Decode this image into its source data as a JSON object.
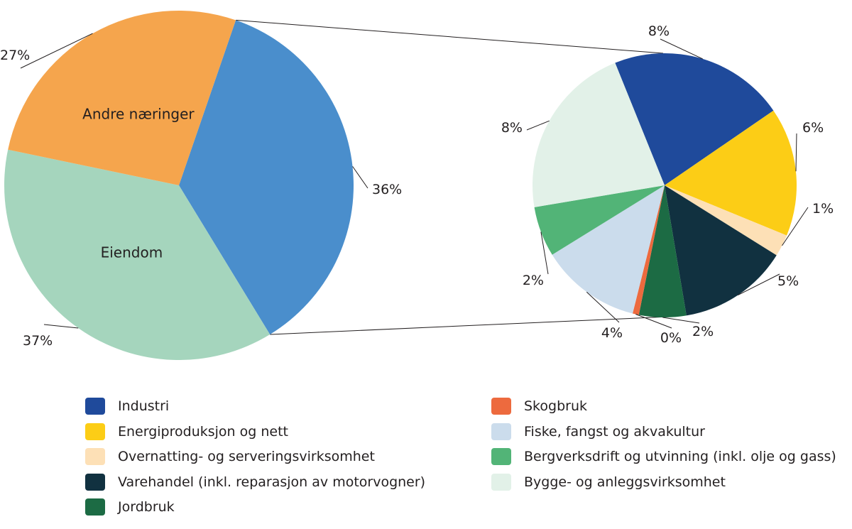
{
  "chart_data": [
    {
      "type": "pie",
      "title": "",
      "slices": [
        {
          "label": "",
          "value": 36,
          "display": "36%",
          "color": "#4a8ecc"
        },
        {
          "label": "Eiendom",
          "value": 37,
          "display": "37%",
          "color": "#a5d5bd"
        },
        {
          "label": "Andre næringer",
          "value": 27,
          "display": "27%",
          "color": "#f5a54d"
        }
      ]
    },
    {
      "type": "pie",
      "title": "",
      "slices": [
        {
          "label": "Industri",
          "value": 8,
          "display": "8%",
          "color": "#1f4a9b"
        },
        {
          "label": "Energiproduksjon og nett",
          "value": 6,
          "display": "6%",
          "color": "#fccd16"
        },
        {
          "label": "Overnatting- og serveringsvirksomhet",
          "value": 1,
          "display": "1%",
          "color": "#fde0b6"
        },
        {
          "label": "Varehandel (inkl. reparasjon av motorvogner)",
          "value": 5,
          "display": "5%",
          "color": "#113140"
        },
        {
          "label": "Jordbruk",
          "value": 2,
          "display": "2%",
          "color": "#1c6b44"
        },
        {
          "label": "Skogbruk",
          "value": 0,
          "display": "0%",
          "color": "#ed6a3e"
        },
        {
          "label": "Fiske, fangst og akvakultur",
          "value": 4,
          "display": "4%",
          "color": "#cbdcec"
        },
        {
          "label": "Bergverksdrift og utvinning (inkl. olje og gass)",
          "value": 2,
          "display": "2%",
          "color": "#52b477"
        },
        {
          "label": "Bygge- og anleggsvirksomhet",
          "value": 8,
          "display": "8%",
          "color": "#e2f1e8"
        }
      ]
    }
  ],
  "legend": [
    {
      "label": "Industri",
      "color": "#1f4a9b"
    },
    {
      "label": "Energiproduksjon og nett",
      "color": "#fccd16"
    },
    {
      "label": "Overnatting- og serveringsvirksomhet",
      "color": "#fde0b6"
    },
    {
      "label": "Varehandel (inkl. reparasjon av motorvogner)",
      "color": "#113140"
    },
    {
      "label": "Jordbruk",
      "color": "#1c6b44"
    },
    {
      "label": "Skogbruk",
      "color": "#ed6a3e"
    },
    {
      "label": "Fiske, fangst og akvakultur",
      "color": "#cbdcec"
    },
    {
      "label": "Bergverksdrift og utvinning (inkl. olje og gass)",
      "color": "#52b477"
    },
    {
      "label": "Bygge- og anleggsvirksomhet",
      "color": "#e2f1e8"
    }
  ]
}
